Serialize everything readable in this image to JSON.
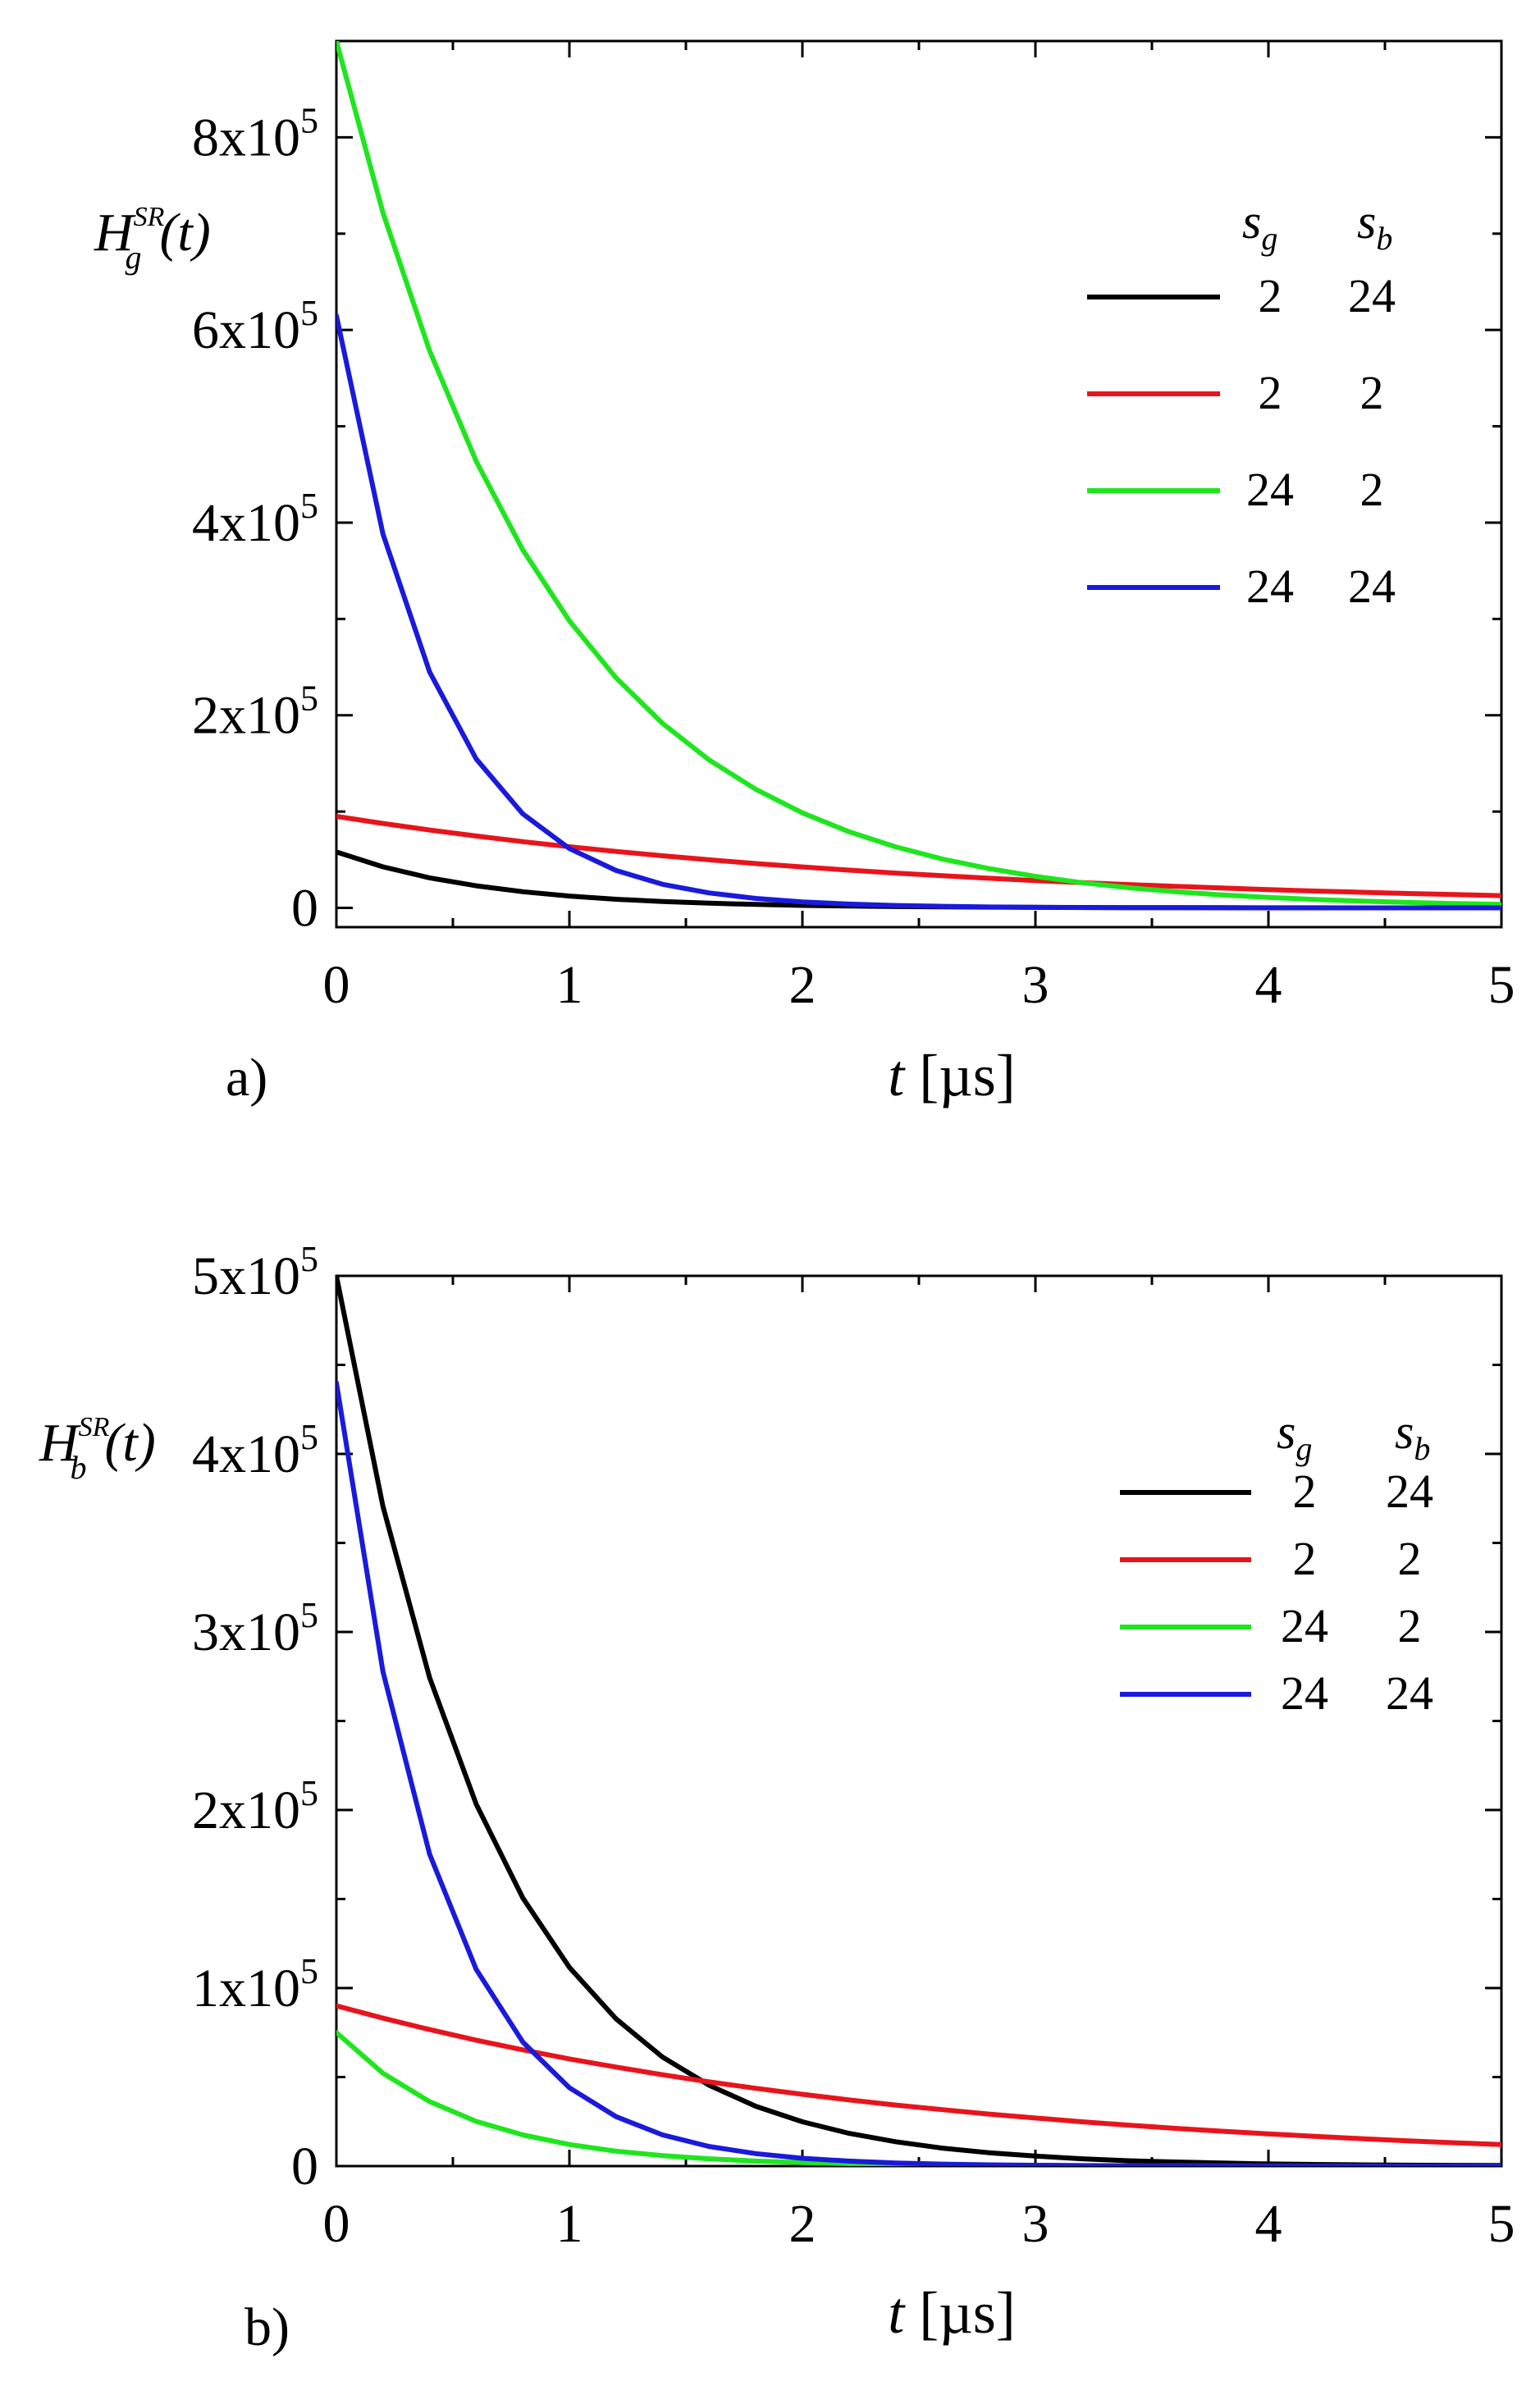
{
  "chart_data": [
    {
      "type": "line",
      "panel_label": "a)",
      "ylabel": {
        "main": "H",
        "sub": "g",
        "sup": "SR",
        "arg": "(t)"
      },
      "xlabel": {
        "var": "t",
        "unit": " [µs]"
      },
      "xlim": [
        0,
        5
      ],
      "ylim": [
        -20000,
        900000
      ],
      "xticks": [
        0,
        1,
        2,
        3,
        4,
        5
      ],
      "xtick_labels": [
        "0",
        "1",
        "2",
        "3",
        "4",
        "5"
      ],
      "yticks": [
        0,
        200000,
        400000,
        600000,
        800000
      ],
      "ytick_labels": [
        {
          "mant": "0",
          "exp": ""
        },
        {
          "mant": "2x10",
          "exp": "5"
        },
        {
          "mant": "4x10",
          "exp": "5"
        },
        {
          "mant": "6x10",
          "exp": "5"
        },
        {
          "mant": "8x10",
          "exp": "5"
        }
      ],
      "grid": false,
      "legend_position": "top-right",
      "legend_headers": {
        "g": "s",
        "g_sub": "g",
        "b": "s",
        "b_sub": "b"
      },
      "x": [
        0,
        0.2,
        0.4,
        0.6,
        0.8,
        1.0,
        1.2,
        1.4,
        1.6,
        1.8,
        2.0,
        2.2,
        2.4,
        2.6,
        2.8,
        3.0,
        3.2,
        3.4,
        3.6,
        3.8,
        4.0,
        4.2,
        4.4,
        4.6,
        4.8,
        5.0
      ],
      "series": [
        {
          "sg": "2",
          "sb": "24",
          "color": "#000000",
          "values": [
            58000,
            42600,
            31200,
            22900,
            16800,
            12300,
            9000,
            6600,
            4900,
            3600,
            2600,
            1900,
            1400,
            1000,
            760,
            560,
            410,
            300,
            220,
            160,
            120,
            90,
            60,
            50,
            30,
            25
          ]
        },
        {
          "sg": "2",
          "sb": "2",
          "color": "#e8141c",
          "values": [
            95000,
            87700,
            80900,
            74600,
            68800,
            63500,
            58600,
            54100,
            49900,
            46000,
            42500,
            39200,
            36100,
            33400,
            30800,
            28400,
            26200,
            24200,
            22300,
            20600,
            19000,
            17500,
            16200,
            14900,
            13800,
            12700
          ]
        },
        {
          "sg": "24",
          "sb": "2",
          "color": "#1ee61e",
          "values": [
            900000,
            721500,
            578400,
            463700,
            371700,
            298000,
            238900,
            191500,
            153500,
            123100,
            98700,
            79100,
            63400,
            50800,
            40800,
            32700,
            26200,
            21000,
            16800,
            13500,
            10800,
            8700,
            7000,
            5600,
            4500,
            3600
          ]
        },
        {
          "sg": "24",
          "sb": "24",
          "color": "#1a1adc",
          "values": [
            615000,
            388000,
            245000,
            154600,
            97600,
            61600,
            38900,
            24500,
            15500,
            9800,
            6200,
            3900,
            2500,
            1600,
            980,
            620,
            390,
            250,
            160,
            100,
            60,
            40,
            25,
            16,
            10,
            6
          ]
        }
      ]
    },
    {
      "type": "line",
      "panel_label": "b)",
      "ylabel": {
        "main": "H",
        "sub": "b",
        "sup": "SR",
        "arg": "(t)"
      },
      "xlabel": {
        "var": "t",
        "unit": " [µs]"
      },
      "xlim": [
        0,
        5
      ],
      "ylim": [
        0,
        500000
      ],
      "xticks": [
        0,
        1,
        2,
        3,
        4,
        5
      ],
      "xtick_labels": [
        "0",
        "1",
        "2",
        "3",
        "4",
        "5"
      ],
      "yticks": [
        0,
        100000,
        200000,
        300000,
        400000,
        500000
      ],
      "ytick_labels": [
        {
          "mant": "0",
          "exp": ""
        },
        {
          "mant": "1x10",
          "exp": "5"
        },
        {
          "mant": "2x10",
          "exp": "5"
        },
        {
          "mant": "3x10",
          "exp": "5"
        },
        {
          "mant": "4x10",
          "exp": "5"
        },
        {
          "mant": "5x10",
          "exp": "5"
        }
      ],
      "grid": false,
      "legend_position": "top-right",
      "legend_headers": {
        "g": "s",
        "g_sub": "g",
        "b": "s",
        "b_sub": "b"
      },
      "x": [
        0,
        0.2,
        0.4,
        0.6,
        0.8,
        1.0,
        1.2,
        1.4,
        1.6,
        1.8,
        2.0,
        2.2,
        2.4,
        2.6,
        2.8,
        3.0,
        3.2,
        3.4,
        3.6,
        3.8,
        4.0,
        4.2,
        4.4,
        4.6,
        4.8,
        5.0
      ],
      "series": [
        {
          "sg": "2",
          "sb": "24",
          "color": "#000000",
          "values": [
            500000,
            370400,
            274400,
            203300,
            150600,
            111600,
            82700,
            61200,
            45400,
            33600,
            24900,
            18400,
            13700,
            10100,
            7500,
            5600,
            4100,
            3000,
            2300,
            1700,
            1200,
            900,
            700,
            500,
            400,
            300
          ]
        },
        {
          "sg": "2",
          "sb": "2",
          "color": "#e8141c",
          "values": [
            90000,
            83100,
            76700,
            70700,
            65300,
            60200,
            55600,
            51300,
            47300,
            43700,
            40300,
            37200,
            34300,
            31700,
            29200,
            27000,
            24900,
            23000,
            21200,
            19600,
            18100,
            16700,
            15400,
            14200,
            13100,
            12100
          ]
        },
        {
          "sg": "24",
          "sb": "2",
          "color": "#1ee61e",
          "values": [
            75000,
            52100,
            36200,
            25100,
            17500,
            12100,
            8400,
            5900,
            4100,
            2800,
            2000,
            1400,
            900,
            650,
            450,
            310,
            220,
            150,
            105,
            70,
            50,
            35,
            25,
            17,
            12,
            8
          ]
        },
        {
          "sg": "24",
          "sb": "24",
          "color": "#1a1adc",
          "values": [
            440000,
            277600,
            175200,
            110500,
            69700,
            44000,
            27800,
            17500,
            11000,
            7000,
            4400,
            2800,
            1750,
            1100,
            700,
            440,
            280,
            175,
            110,
            70,
            44,
            28,
            17,
            11,
            7,
            4
          ]
        }
      ]
    }
  ]
}
